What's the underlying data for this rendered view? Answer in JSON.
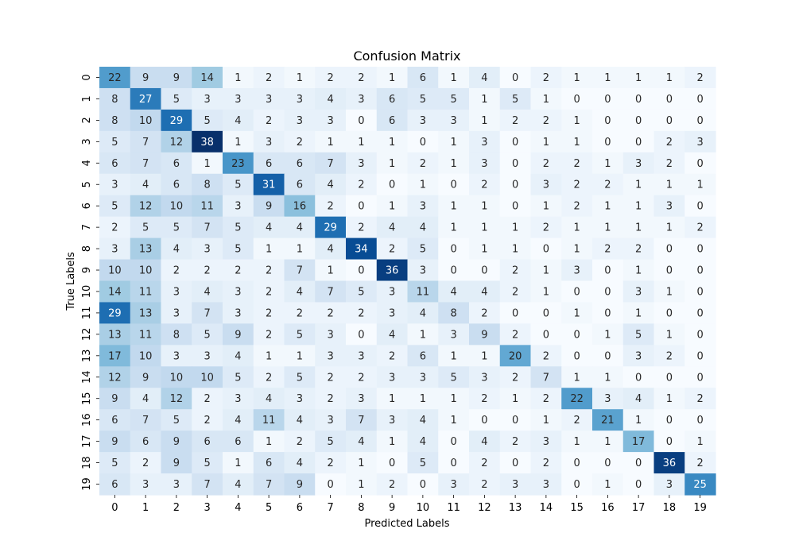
{
  "chart_data": {
    "type": "heatmap",
    "title": "Confusion Matrix",
    "xlabel": "Predicted Labels",
    "ylabel": "True Labels",
    "x_categories": [
      "0",
      "1",
      "2",
      "3",
      "4",
      "5",
      "6",
      "7",
      "8",
      "9",
      "10",
      "11",
      "12",
      "13",
      "14",
      "15",
      "16",
      "17",
      "18",
      "19"
    ],
    "y_categories": [
      "0",
      "1",
      "2",
      "3",
      "4",
      "5",
      "6",
      "7",
      "8",
      "9",
      "10",
      "11",
      "12",
      "13",
      "14",
      "15",
      "16",
      "17",
      "18",
      "19"
    ],
    "values": [
      [
        22,
        9,
        9,
        14,
        1,
        2,
        1,
        2,
        2,
        1,
        6,
        1,
        4,
        0,
        2,
        1,
        1,
        1,
        1,
        2
      ],
      [
        8,
        27,
        5,
        3,
        3,
        3,
        3,
        4,
        3,
        6,
        5,
        5,
        1,
        5,
        1,
        0,
        0,
        0,
        0,
        0
      ],
      [
        8,
        10,
        29,
        5,
        4,
        2,
        3,
        3,
        0,
        6,
        3,
        3,
        1,
        2,
        2,
        1,
        0,
        0,
        0,
        0
      ],
      [
        5,
        7,
        12,
        38,
        1,
        3,
        2,
        1,
        1,
        1,
        0,
        1,
        3,
        0,
        1,
        1,
        0,
        0,
        2,
        3
      ],
      [
        6,
        7,
        6,
        1,
        23,
        6,
        6,
        7,
        3,
        1,
        2,
        1,
        3,
        0,
        2,
        2,
        1,
        3,
        2,
        0
      ],
      [
        3,
        4,
        6,
        8,
        5,
        31,
        6,
        4,
        2,
        0,
        1,
        0,
        2,
        0,
        3,
        2,
        2,
        1,
        1,
        1
      ],
      [
        5,
        12,
        10,
        11,
        3,
        9,
        16,
        2,
        0,
        1,
        3,
        1,
        1,
        0,
        1,
        2,
        1,
        1,
        3,
        0
      ],
      [
        2,
        5,
        5,
        7,
        5,
        4,
        4,
        29,
        2,
        4,
        4,
        1,
        1,
        1,
        2,
        1,
        1,
        1,
        1,
        2
      ],
      [
        3,
        13,
        4,
        3,
        5,
        1,
        1,
        4,
        34,
        2,
        5,
        0,
        1,
        1,
        0,
        1,
        2,
        2,
        0,
        0
      ],
      [
        10,
        10,
        2,
        2,
        2,
        2,
        7,
        1,
        0,
        36,
        3,
        0,
        0,
        2,
        1,
        3,
        0,
        1,
        0,
        0
      ],
      [
        14,
        11,
        3,
        4,
        3,
        2,
        4,
        7,
        5,
        3,
        11,
        4,
        4,
        2,
        1,
        0,
        0,
        3,
        1,
        0
      ],
      [
        29,
        13,
        3,
        7,
        3,
        2,
        2,
        2,
        2,
        3,
        4,
        8,
        2,
        0,
        0,
        1,
        0,
        1,
        0,
        0
      ],
      [
        13,
        11,
        8,
        5,
        9,
        2,
        5,
        3,
        0,
        4,
        1,
        3,
        9,
        2,
        0,
        0,
        1,
        5,
        1,
        0
      ],
      [
        17,
        10,
        3,
        3,
        4,
        1,
        1,
        3,
        3,
        2,
        6,
        1,
        1,
        20,
        2,
        0,
        0,
        3,
        2,
        0
      ],
      [
        12,
        9,
        10,
        10,
        5,
        2,
        5,
        2,
        2,
        3,
        3,
        5,
        3,
        2,
        7,
        1,
        1,
        0,
        0,
        0
      ],
      [
        9,
        4,
        12,
        2,
        3,
        4,
        3,
        2,
        3,
        1,
        1,
        1,
        2,
        1,
        2,
        22,
        3,
        4,
        1,
        2
      ],
      [
        6,
        7,
        5,
        2,
        4,
        11,
        4,
        3,
        7,
        3,
        4,
        1,
        0,
        0,
        1,
        2,
        21,
        1,
        0,
        0
      ],
      [
        9,
        6,
        9,
        6,
        6,
        1,
        2,
        5,
        4,
        1,
        4,
        0,
        4,
        2,
        3,
        1,
        1,
        17,
        0,
        1
      ],
      [
        5,
        2,
        9,
        5,
        1,
        6,
        4,
        2,
        1,
        0,
        5,
        0,
        2,
        0,
        2,
        0,
        0,
        0,
        36,
        2
      ],
      [
        6,
        3,
        3,
        7,
        4,
        7,
        9,
        0,
        1,
        2,
        0,
        3,
        2,
        3,
        3,
        0,
        1,
        0,
        3,
        25
      ]
    ],
    "colormap": "Blues",
    "color_range": [
      0,
      38
    ],
    "colors": {
      "low": "#f7fbff",
      "high": "#08306b",
      "text_dark": "#262626",
      "text_light": "#ffffff"
    },
    "annotated": true,
    "colorbar": false,
    "grid": false
  }
}
